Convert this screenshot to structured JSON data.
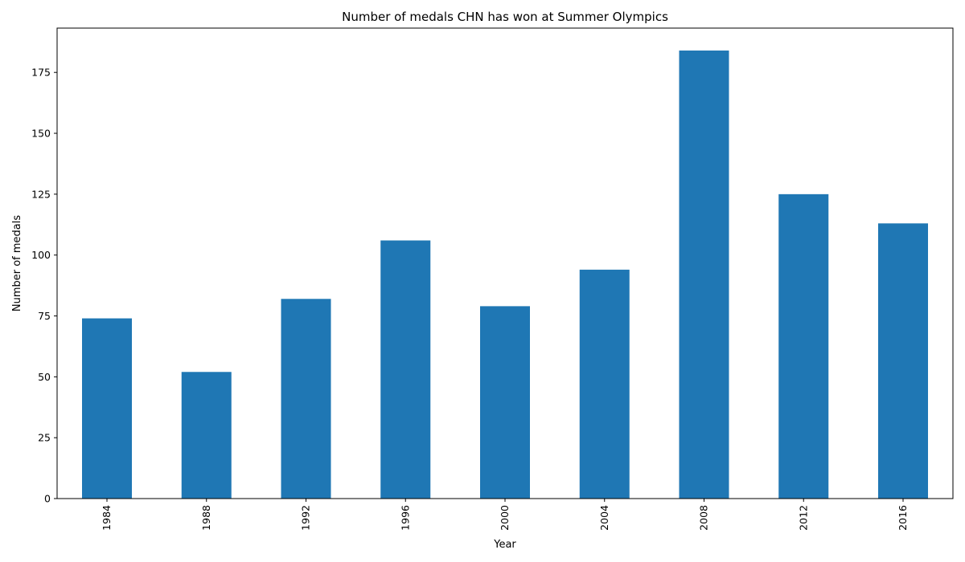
{
  "chart_data": {
    "type": "bar",
    "title": "Number of medals CHN has won at Summer Olympics",
    "xlabel": "Year",
    "ylabel": "Number of medals",
    "categories": [
      "1984",
      "1988",
      "1992",
      "1996",
      "2000",
      "2004",
      "2008",
      "2012",
      "2016"
    ],
    "values": [
      74,
      52,
      82,
      106,
      79,
      94,
      184,
      125,
      113
    ],
    "ylim": [
      0,
      193.2
    ],
    "yticks": [
      0,
      25,
      50,
      75,
      100,
      125,
      150,
      175
    ],
    "bar_color": "#1f77b4",
    "grid": false,
    "legend": false
  }
}
